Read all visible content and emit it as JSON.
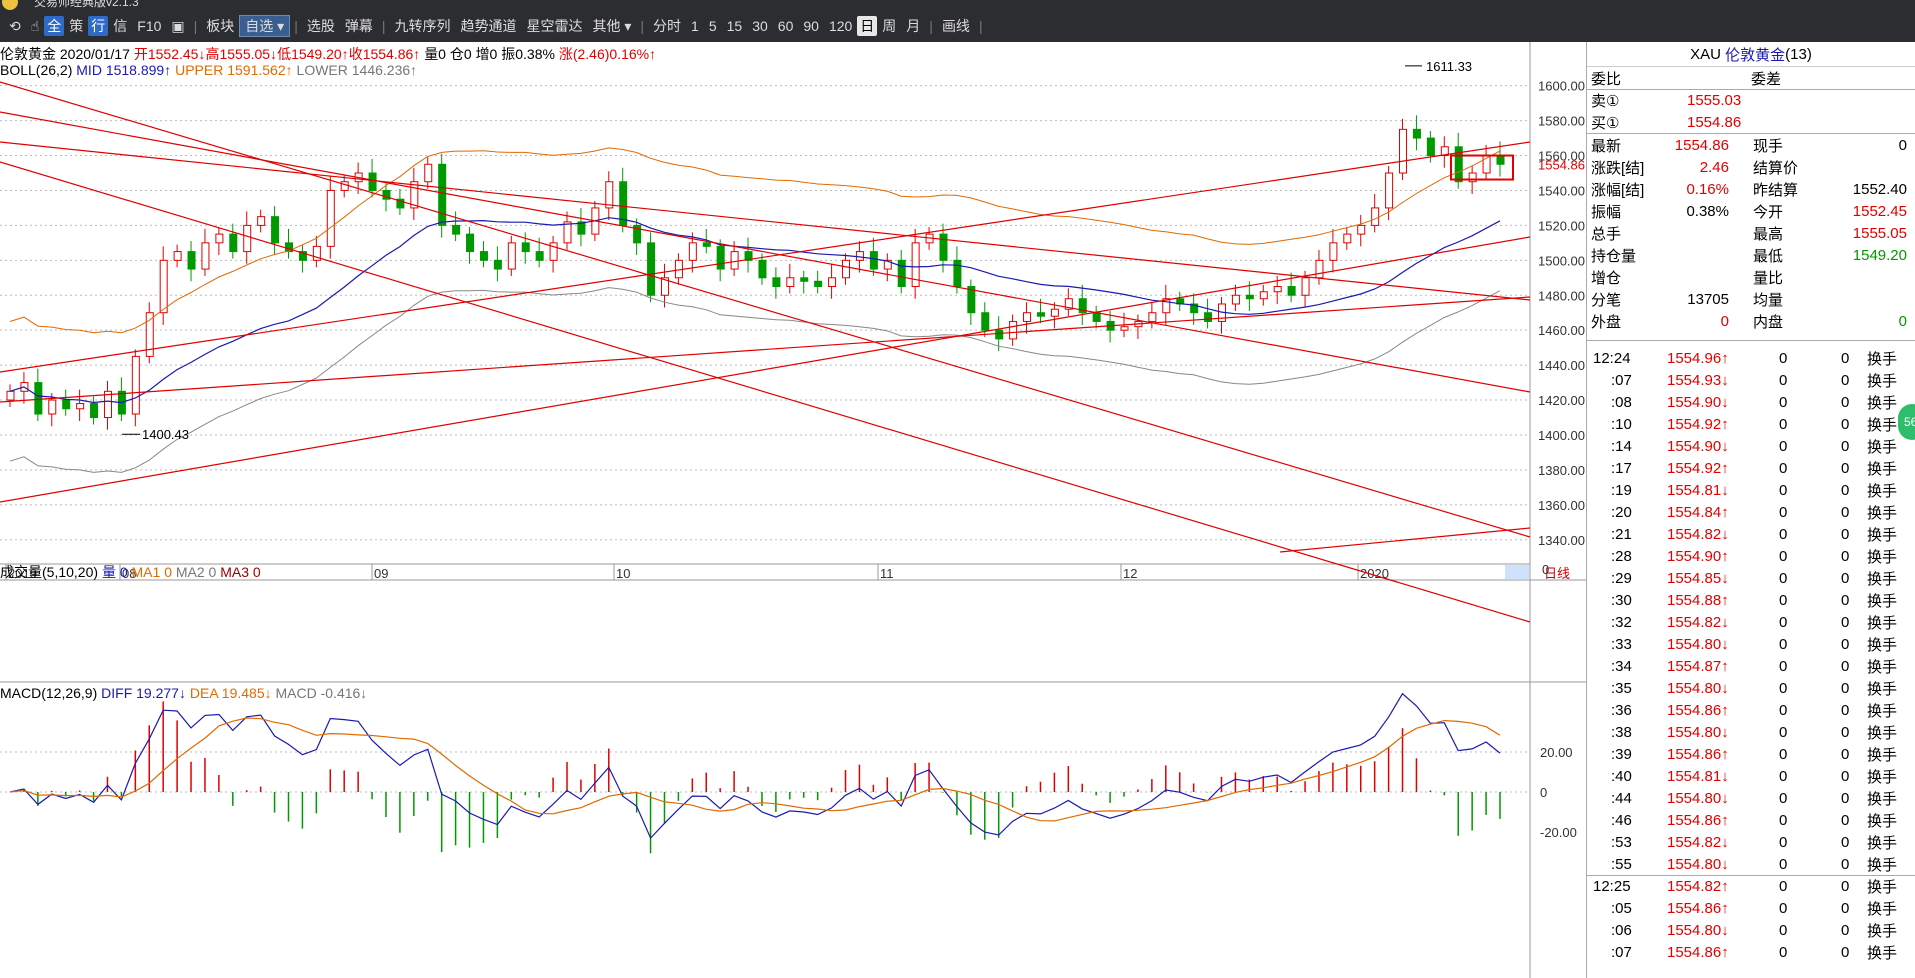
{
  "window": {
    "title": "交易师经典版v2.1.3"
  },
  "toolbar": {
    "items": [
      "全",
      "策",
      "行",
      "信",
      "F10",
      "板块",
      "自选",
      "选股",
      "弹幕",
      "九转序列",
      "趋势通道",
      "星空雷达",
      "其他",
      "分时",
      "1",
      "5",
      "15",
      "30",
      "60",
      "90",
      "120",
      "日",
      "周",
      "月",
      "画线"
    ]
  },
  "quote_line": {
    "name": "伦敦黄金",
    "date": "2020/01/17",
    "open_label": "开",
    "open": "1552.45↓",
    "high_label": "高",
    "high": "1555.05↓",
    "low_label": "低",
    "low": "1549.20↑",
    "close_label": "收",
    "close": "1554.86↑",
    "vol": "量0",
    "pos": "仓0",
    "inc": "增0",
    "amp": "振0.38%",
    "chg": "涨(2.46)0.16%↑"
  },
  "boll_line": {
    "label": "BOLL(26,2)",
    "mid": "MID 1518.899↑",
    "upper": "UPPER 1591.562↑",
    "lower": "LOWER 1446.236↑"
  },
  "volume_line": {
    "label": "成交量(5,10,20)",
    "vol": "量 0",
    "ma1": "MA1 0",
    "ma2": "MA2 0",
    "ma3": "MA3 0"
  },
  "macd_line": {
    "label": "MACD(12,26,9)",
    "diff": "DIFF 19.277↓",
    "dea": "DEA 19.485↓",
    "macd": "MACD -0.416↓"
  },
  "annotations": {
    "peak": "1611.33",
    "trough": "1400.43",
    "last_price": "1554.86"
  },
  "x_labels": [
    "2019",
    "08",
    "09",
    "10",
    "11",
    "12",
    "2020"
  ],
  "period_tag": "日线",
  "volume_axis": "0",
  "macd_axis": [
    "20.00",
    "0",
    "-20.00"
  ],
  "colors": {
    "up": "#e00000",
    "down": "#009900",
    "mid": "#1a1ab0",
    "upper": "#e06a00",
    "lower": "#888888",
    "toolbar": "#2b2d31"
  },
  "chart_data": {
    "type": "candlestick",
    "title": "伦敦黄金",
    "y_axis": {
      "ticks": [
        1340,
        1360,
        1380,
        1400,
        1420,
        1440,
        1460,
        1480,
        1500,
        1520,
        1540,
        1560,
        1580,
        1600
      ],
      "ylim": [
        1333,
        1625
      ]
    },
    "x_axis": {
      "labels": [
        "2019",
        "08",
        "09",
        "10",
        "11",
        "12",
        "2020"
      ]
    },
    "close_prices": [
      1425,
      1430,
      1412,
      1420,
      1415,
      1418,
      1410,
      1425,
      1412,
      1445,
      1470,
      1500,
      1505,
      1495,
      1510,
      1515,
      1505,
      1520,
      1525,
      1510,
      1505,
      1500,
      1508,
      1540,
      1545,
      1550,
      1540,
      1535,
      1530,
      1545,
      1555,
      1520,
      1515,
      1505,
      1500,
      1495,
      1510,
      1505,
      1500,
      1510,
      1522,
      1515,
      1530,
      1545,
      1520,
      1510,
      1480,
      1490,
      1500,
      1510,
      1508,
      1495,
      1505,
      1500,
      1490,
      1485,
      1490,
      1488,
      1485,
      1490,
      1500,
      1505,
      1495,
      1500,
      1485,
      1510,
      1515,
      1500,
      1485,
      1470,
      1460,
      1455,
      1465,
      1470,
      1468,
      1472,
      1478,
      1470,
      1465,
      1460,
      1462,
      1465,
      1470,
      1478,
      1475,
      1470,
      1465,
      1475,
      1480,
      1478,
      1482,
      1485,
      1480,
      1490,
      1500,
      1510,
      1515,
      1520,
      1530,
      1550,
      1575,
      1570,
      1560,
      1565,
      1545,
      1550,
      1560,
      1555
    ],
    "last": 1554.86,
    "high_mark": 1611.33,
    "low_mark": 1400.43
  },
  "right_panel": {
    "symbol": "XAU",
    "name": "伦敦黄金",
    "count": "(13)",
    "row_weibi": {
      "l": "委比",
      "r": "委差"
    },
    "sell1": {
      "l": "卖①",
      "v": "1555.03"
    },
    "buy1": {
      "l": "买①",
      "v": "1554.86"
    },
    "stats": [
      {
        "l": "最新",
        "v": "1554.86",
        "l2": "现手",
        "v2": "0"
      },
      {
        "l": "涨跌[结]",
        "v": "2.46",
        "l2": "结算价",
        "v2": ""
      },
      {
        "l": "涨幅[结]",
        "v": "0.16%",
        "l2": "昨结算",
        "v2": "1552.40"
      },
      {
        "l": "振幅",
        "v": "0.38%",
        "l2": "今开",
        "v2": "1552.45"
      },
      {
        "l": "总手",
        "v": "",
        "l2": "最高",
        "v2": "1555.05"
      },
      {
        "l": "持仓量",
        "v": "",
        "l2": "最低",
        "v2": "1549.20"
      },
      {
        "l": "增仓",
        "v": "",
        "l2": "量比",
        "v2": ""
      },
      {
        "l": "分笔",
        "v": "13705",
        "l2": "均量",
        "v2": ""
      },
      {
        "l": "外盘",
        "v": "0",
        "l2": "内盘",
        "v2": "0"
      }
    ],
    "ticks": [
      {
        "t": "12:24",
        "p": "1554.96↑"
      },
      {
        "t": ":07",
        "p": "1554.93↓"
      },
      {
        "t": ":08",
        "p": "1554.90↓"
      },
      {
        "t": ":10",
        "p": "1554.92↑"
      },
      {
        "t": ":14",
        "p": "1554.90↓"
      },
      {
        "t": ":17",
        "p": "1554.92↑"
      },
      {
        "t": ":19",
        "p": "1554.81↓"
      },
      {
        "t": ":20",
        "p": "1554.84↑"
      },
      {
        "t": ":21",
        "p": "1554.82↓"
      },
      {
        "t": ":28",
        "p": "1554.90↑"
      },
      {
        "t": ":29",
        "p": "1554.85↓"
      },
      {
        "t": ":30",
        "p": "1554.88↑"
      },
      {
        "t": ":32",
        "p": "1554.82↓"
      },
      {
        "t": ":33",
        "p": "1554.80↓"
      },
      {
        "t": ":34",
        "p": "1554.87↑"
      },
      {
        "t": ":35",
        "p": "1554.80↓"
      },
      {
        "t": ":36",
        "p": "1554.86↑"
      },
      {
        "t": ":38",
        "p": "1554.80↓"
      },
      {
        "t": ":39",
        "p": "1554.86↑"
      },
      {
        "t": ":40",
        "p": "1554.81↓"
      },
      {
        "t": ":44",
        "p": "1554.80↓"
      },
      {
        "t": ":46",
        "p": "1554.86↑"
      },
      {
        "t": ":53",
        "p": "1554.82↓"
      },
      {
        "t": ":55",
        "p": "1554.80↓"
      },
      {
        "t": "12:25",
        "p": "1554.82↑"
      },
      {
        "t": ":05",
        "p": "1554.86↑"
      },
      {
        "t": ":06",
        "p": "1554.80↓"
      },
      {
        "t": ":07",
        "p": "1554.86↑"
      }
    ],
    "tick_vol": "0",
    "tick_vol2": "0",
    "tick_type": "换手"
  },
  "side_badge": "56"
}
